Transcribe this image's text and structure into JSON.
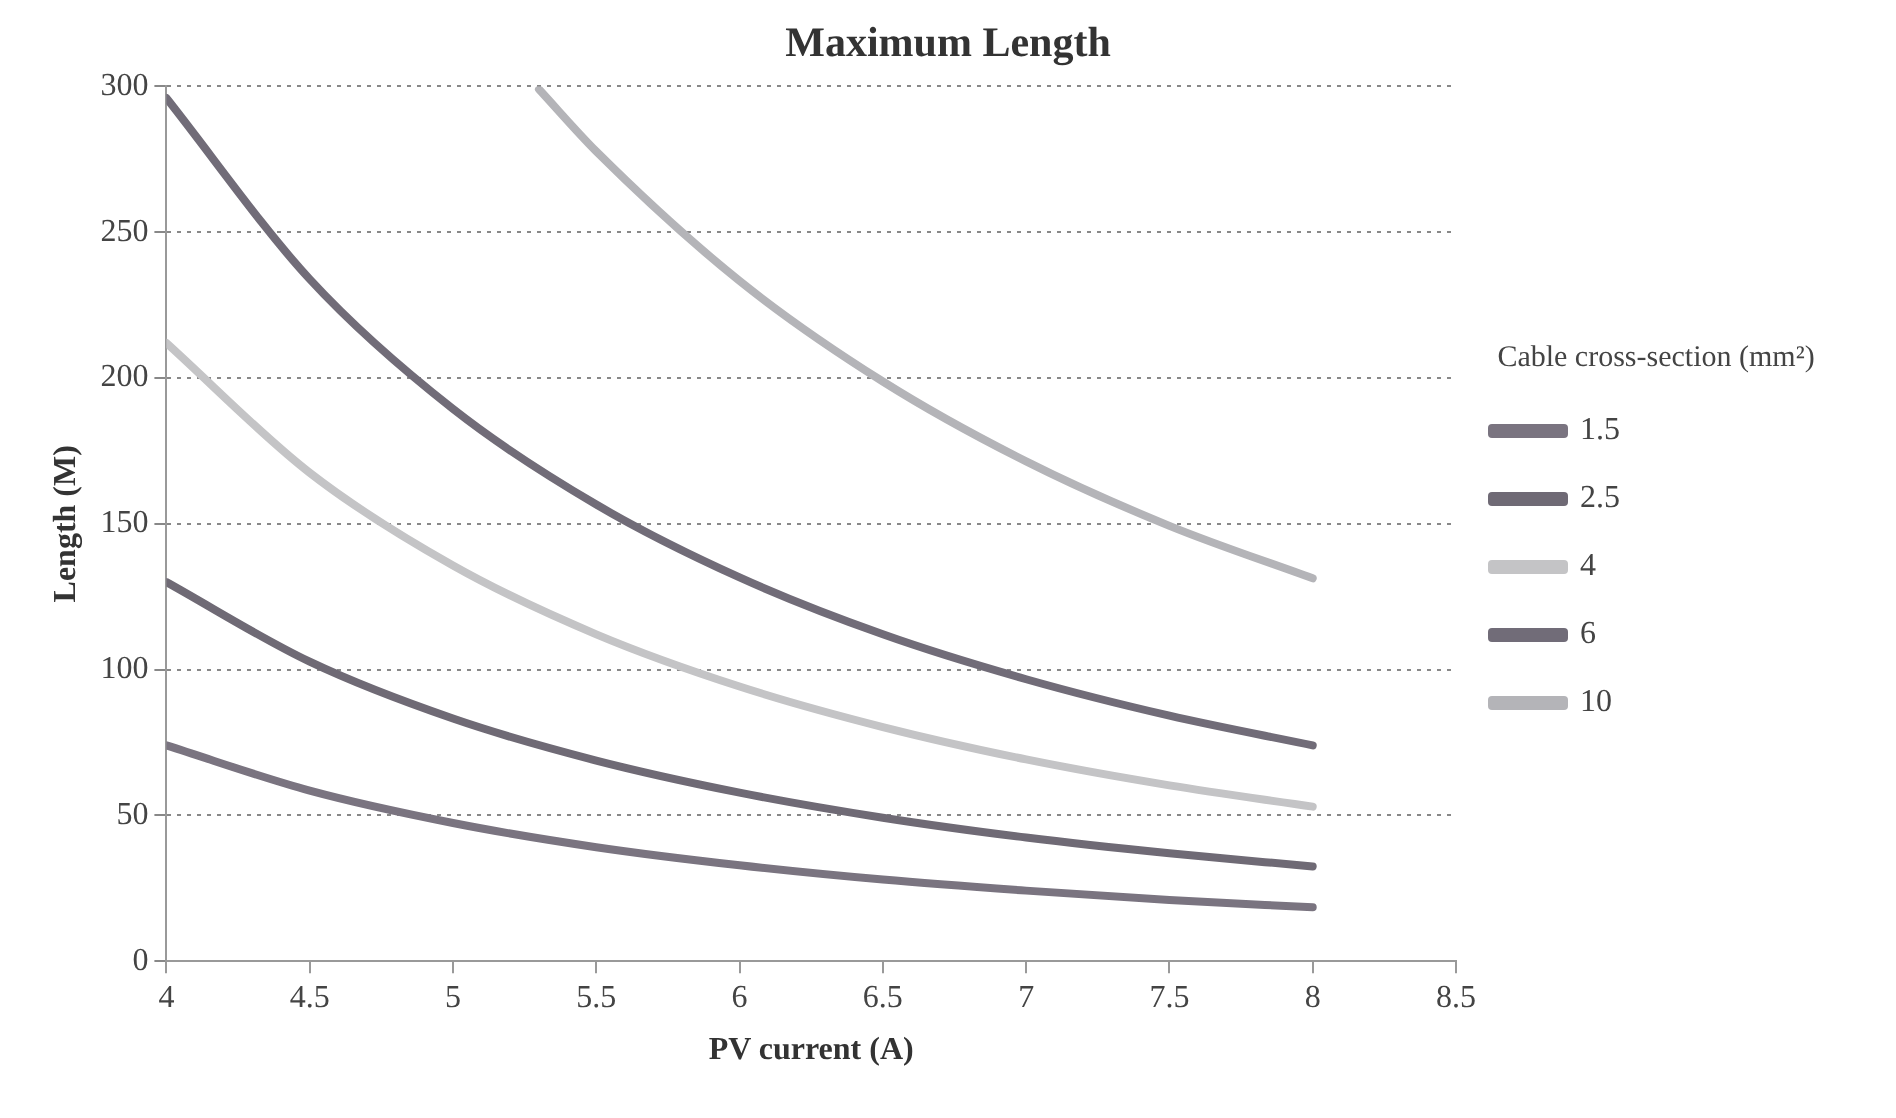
{
  "chart_data": {
    "type": "line",
    "title": "Maximum Length",
    "xlabel": "PV current (A)",
    "ylabel": "Length (M)",
    "legend_title": "Cable cross-section (mm²)",
    "xlim": [
      4,
      8.5
    ],
    "xticks": [
      4,
      4.5,
      5,
      5.5,
      6,
      6.5,
      7,
      7.5,
      8,
      8.5
    ],
    "ylim": [
      0,
      300
    ],
    "yticks": [
      0,
      50,
      100,
      150,
      200,
      250,
      300
    ],
    "grid": "y",
    "legend": "right",
    "marker": "none",
    "line_style": "solid",
    "series": [
      {
        "name": "1.5",
        "color": "#7a7480",
        "x": [
          4,
          4.5,
          5,
          5.5,
          6,
          6.5,
          7,
          7.5,
          8
        ],
        "values": [
          74,
          58.5,
          47.4,
          39.1,
          32.9,
          28,
          24.2,
          21,
          18.5
        ]
      },
      {
        "name": "2.5",
        "color": "#6f6a75",
        "x": [
          4,
          4.5,
          5,
          5.5,
          6,
          6.5,
          7,
          7.5,
          8
        ],
        "values": [
          130,
          102.7,
          83.2,
          68.8,
          57.8,
          49.2,
          42.4,
          37,
          32.5
        ]
      },
      {
        "name": "4",
        "color": "#c4c4c6",
        "x": [
          4,
          4.5,
          5,
          5.5,
          6,
          6.5,
          7,
          7.5,
          8
        ],
        "values": [
          212,
          167.5,
          135.7,
          112.1,
          94.2,
          80.3,
          69.2,
          60.3,
          53
        ]
      },
      {
        "name": "6",
        "color": "#716c78",
        "x": [
          4,
          4.5,
          5,
          5.5,
          6,
          6.5,
          7,
          7.5,
          8
        ],
        "values": [
          296,
          233.9,
          189.4,
          156.6,
          131.6,
          112.1,
          96.7,
          84.2,
          74
        ]
      },
      {
        "name": "10",
        "color": "#b4b4b8",
        "x": [
          5.3,
          5.5,
          6,
          6.5,
          7,
          7.5,
          8
        ],
        "values": [
          299,
          277.7,
          233.3,
          198.8,
          171.4,
          149.3,
          131.3
        ]
      }
    ]
  }
}
